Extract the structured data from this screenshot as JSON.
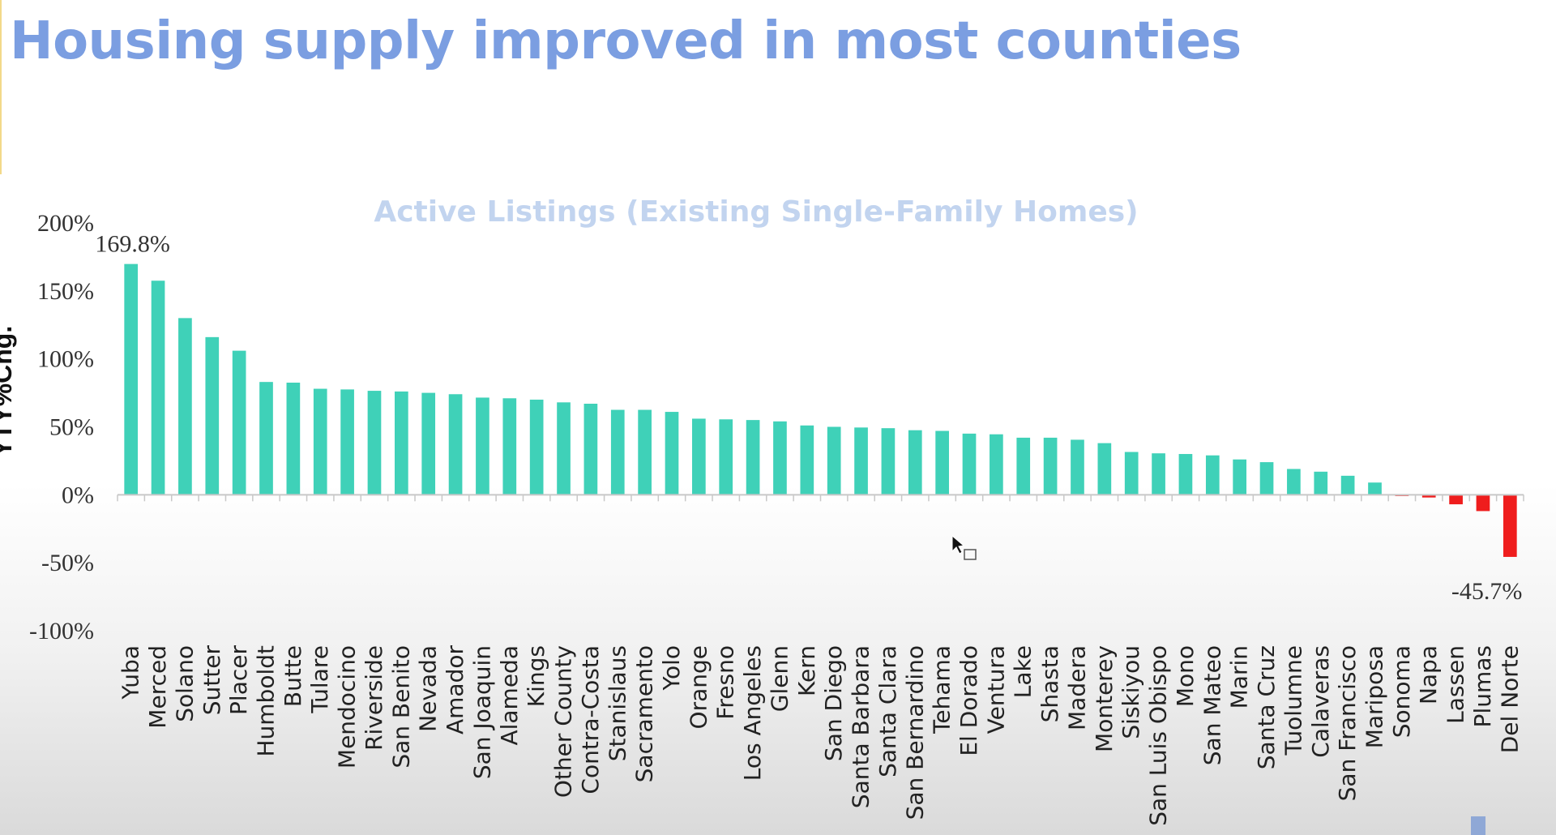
{
  "slide": {
    "title": "Housing supply improved in most counties"
  },
  "colors": {
    "title": "#7b9ee1",
    "chart_title": "#c2d4ef",
    "positive_bar": "#3fd1b8",
    "negative_bar": "#ef1d1d"
  },
  "chart_data": {
    "type": "bar",
    "title": "Active Listings (Existing Single-Family Homes)",
    "ylabel": "YTY%Chg.",
    "ylim": [
      -100,
      200
    ],
    "yticks": [
      200,
      150,
      100,
      50,
      0,
      -50,
      -100
    ],
    "ytick_labels": [
      "200%",
      "150%",
      "100%",
      "50%",
      "0%",
      "-50%",
      "-100%"
    ],
    "categories": [
      "Yuba",
      "Merced",
      "Solano",
      "Sutter",
      "Placer",
      "Humboldt",
      "Butte",
      "Tulare",
      "Mendocino",
      "Riverside",
      "San Benito",
      "Nevada",
      "Amador",
      "San Joaquin",
      "Alameda",
      "Kings",
      "Other County",
      "Contra-Costa",
      "Stanislaus",
      "Sacramento",
      "Yolo",
      "Orange",
      "Fresno",
      "Los Angeles",
      "Glenn",
      "Kern",
      "San Diego",
      "Santa Barbara",
      "Santa Clara",
      "San Bernardino",
      "Tehama",
      "El Dorado",
      "Ventura",
      "Lake",
      "Shasta",
      "Madera",
      "Monterey",
      "Siskiyou",
      "San Luis Obispo",
      "Mono",
      "San Mateo",
      "Marin",
      "Santa Cruz",
      "Tuolumne",
      "Calaveras",
      "San Francisco",
      "Mariposa",
      "Sonoma",
      "Napa",
      "Lassen",
      "Plumas",
      "Del Norte"
    ],
    "values": [
      169.8,
      157.5,
      130,
      116,
      106,
      83,
      82.5,
      78,
      77.5,
      76.5,
      76,
      75,
      74,
      71.5,
      71,
      70,
      68,
      67,
      62.5,
      62.5,
      61,
      56,
      55.5,
      55,
      54,
      51,
      50,
      49.5,
      49,
      47.5,
      47,
      45,
      44.5,
      42,
      42,
      40.5,
      38,
      31.5,
      30.5,
      30,
      29,
      26,
      24,
      19,
      17,
      14,
      9,
      -0.5,
      -2,
      -7,
      -12,
      -45.7
    ],
    "data_labels": [
      {
        "category": "Yuba",
        "text": "169.8%"
      },
      {
        "category": "Del Norte",
        "text": "-45.7%"
      }
    ],
    "grid": false,
    "legend": "none"
  }
}
